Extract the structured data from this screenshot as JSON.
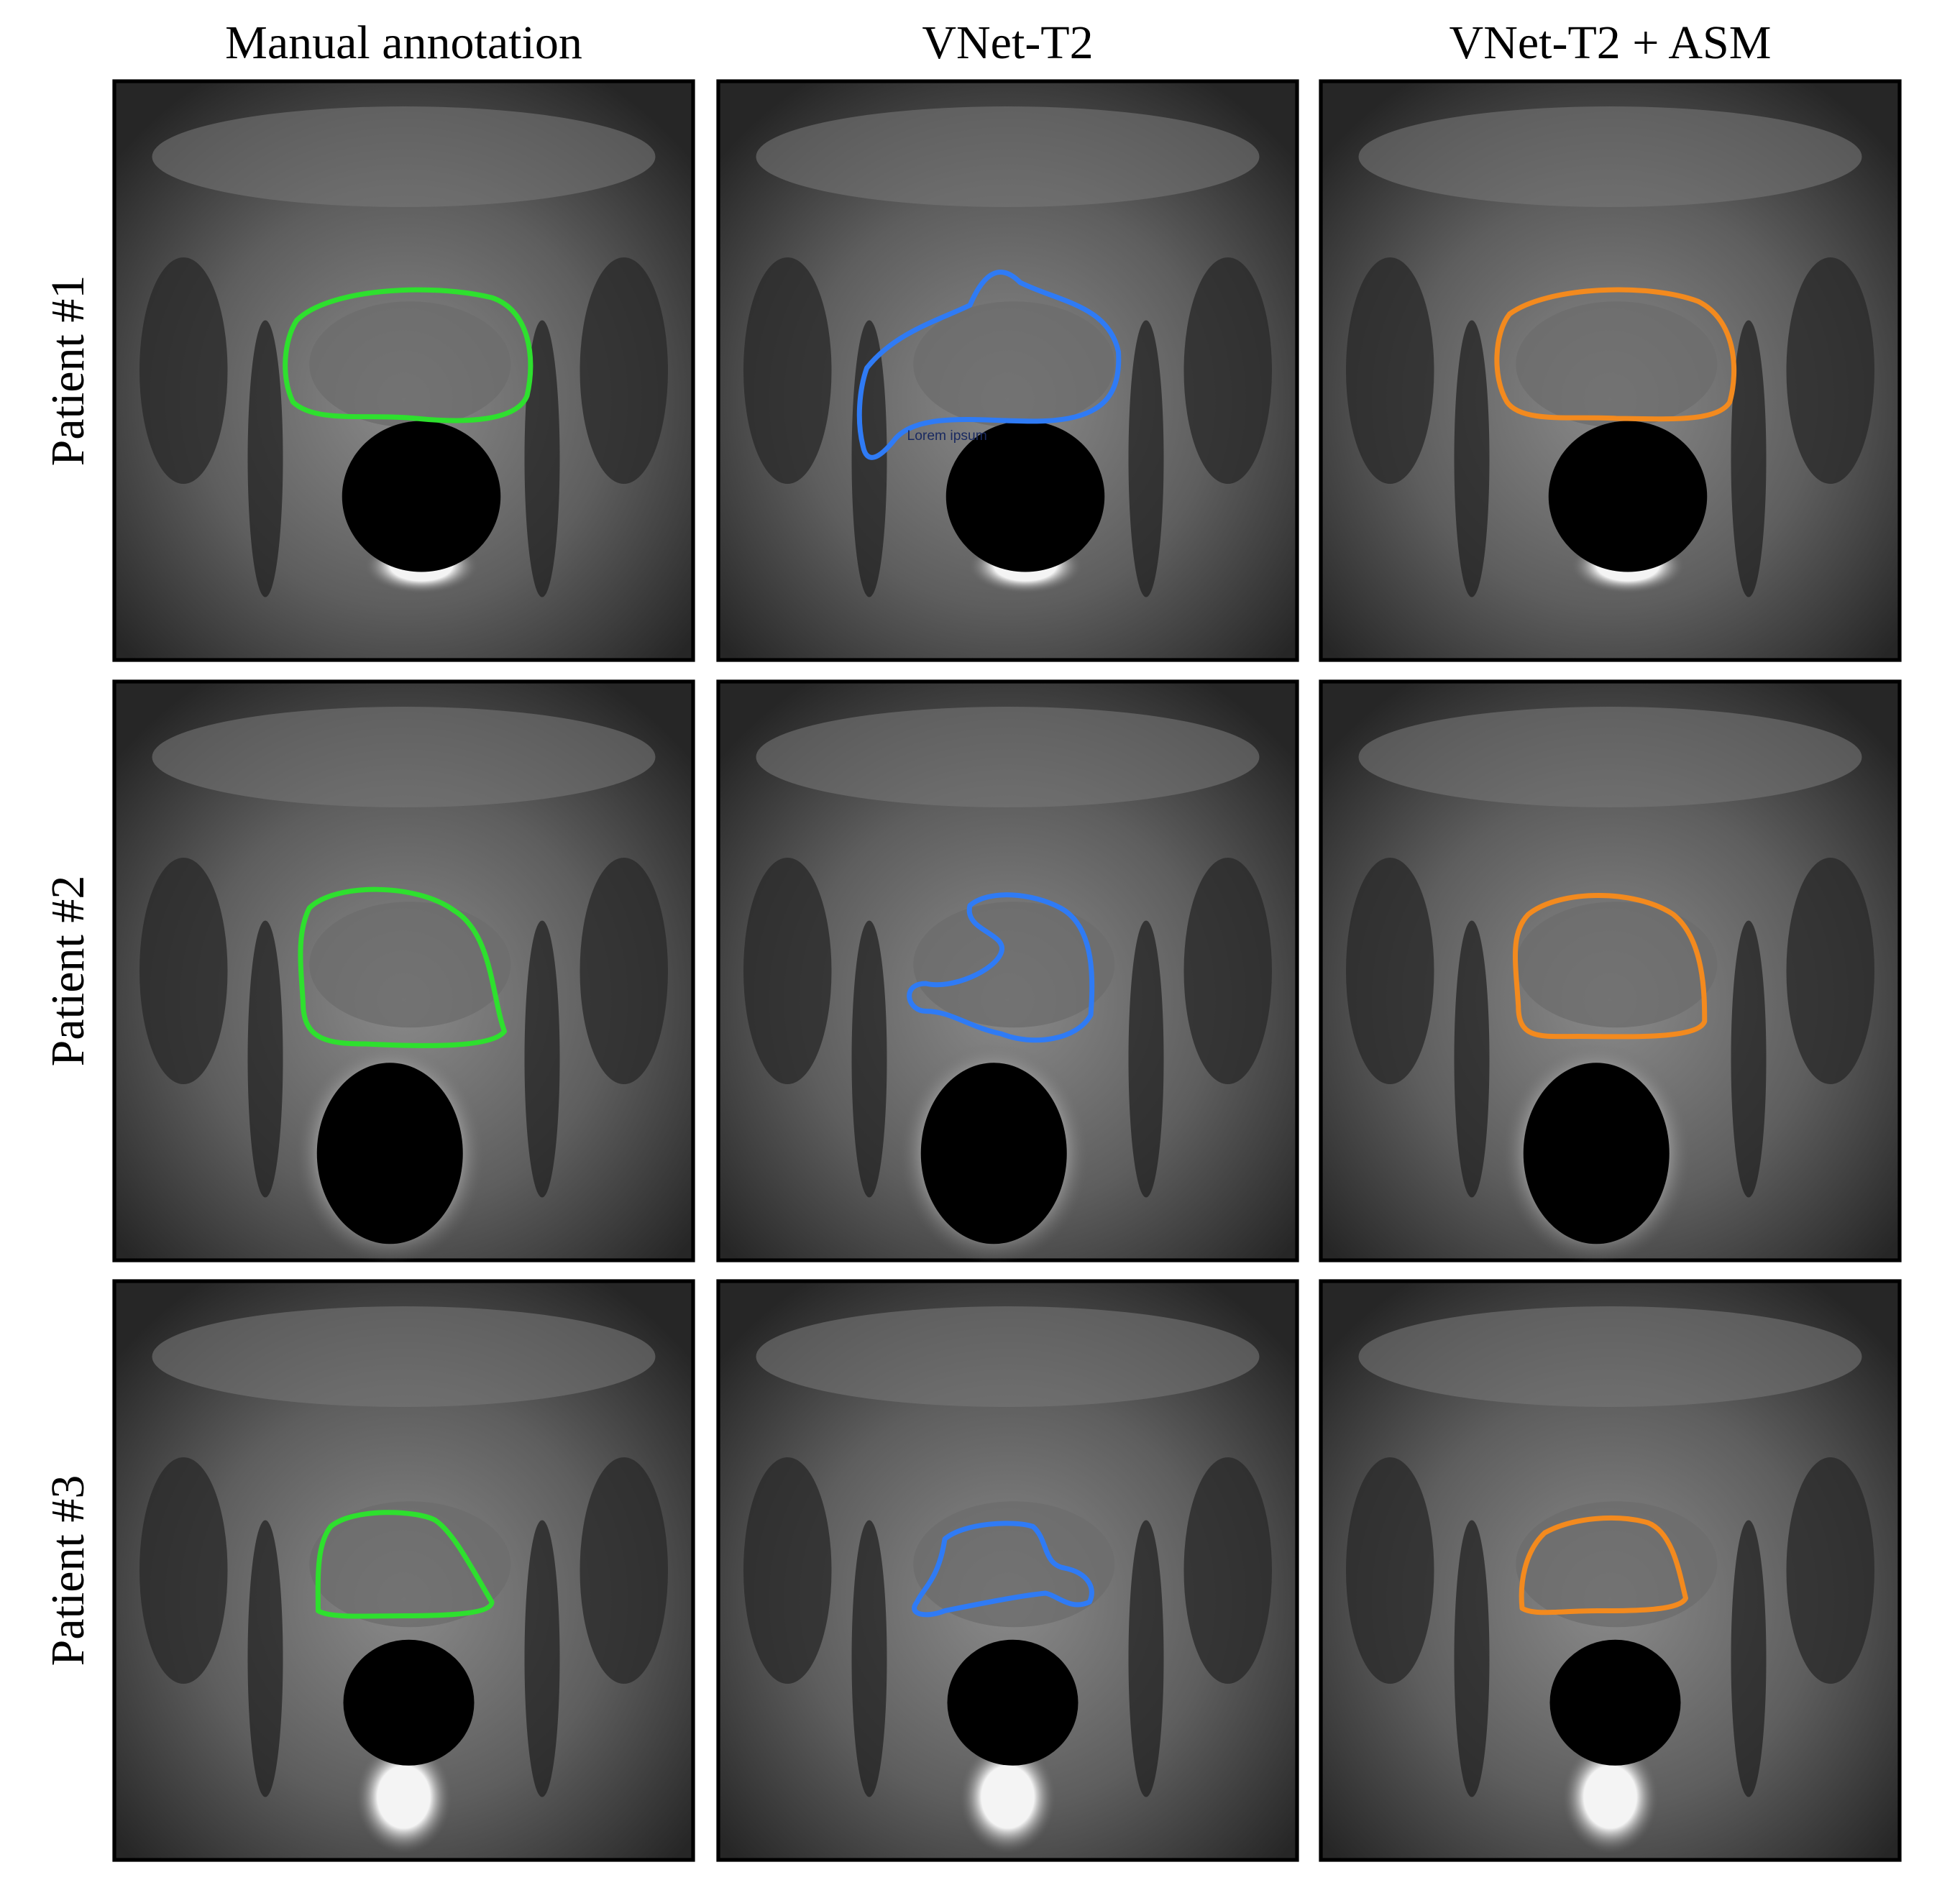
{
  "columns": [
    "Manual annotation",
    "VNet-T2",
    "VNet-T2 + ASM"
  ],
  "rows": [
    "Patient #1",
    "Patient #2",
    "Patient #3"
  ],
  "annotation": "Lorem ipsum"
}
